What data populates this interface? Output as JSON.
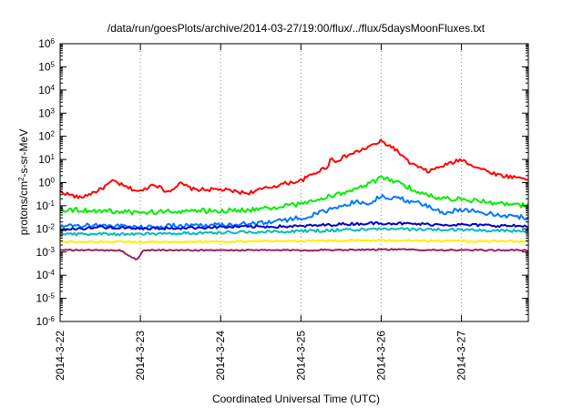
{
  "chart_data": {
    "type": "line",
    "title": "/data/run/goesPlots/archive/2014-03-27/19:00/flux/../flux/5daysMoonFluxes.txt",
    "xlabel": "Coordinated Universal Time (UTC)",
    "ylabel": {
      "base": "protons/cm",
      "sup": "2",
      "rest": "-s-sr-MeV"
    },
    "yscale": "log",
    "ylim": [
      1e-06,
      1000000.0
    ],
    "xlim": [
      "2014-03-22",
      "2014-03-27T20:00"
    ],
    "grid": "vertical dotted at each date tick",
    "legend": "none",
    "x_ticks": [
      "2014-3-22",
      "2014-3-23",
      "2014-3-24",
      "2014-3-25",
      "2014-3-26",
      "2014-3-27"
    ],
    "y_ticks": [
      {
        "base": "10",
        "exp": "-6"
      },
      {
        "base": "10",
        "exp": "-5"
      },
      {
        "base": "10",
        "exp": "-4"
      },
      {
        "base": "10",
        "exp": "-3"
      },
      {
        "base": "10",
        "exp": "-2"
      },
      {
        "base": "10",
        "exp": "-1"
      },
      {
        "base": "10",
        "exp": "0"
      },
      {
        "base": "10",
        "exp": "1"
      },
      {
        "base": "10",
        "exp": "2"
      },
      {
        "base": "10",
        "exp": "3"
      },
      {
        "base": "10",
        "exp": "4"
      },
      {
        "base": "10",
        "exp": "5"
      },
      {
        "base": "10",
        "exp": "6"
      }
    ],
    "series": [
      {
        "color": "#ff0000",
        "noise": 0.08,
        "points": [
          [
            "2014-03-22T00:00",
            0.4
          ],
          [
            "2014-03-22T06:00",
            0.22
          ],
          [
            "2014-03-22T12:00",
            0.5
          ],
          [
            "2014-03-22T16:00",
            1.2
          ],
          [
            "2014-03-22T19:00",
            0.7
          ],
          [
            "2014-03-23T00:00",
            0.4
          ],
          [
            "2014-03-23T04:00",
            0.9
          ],
          [
            "2014-03-23T08:00",
            0.4
          ],
          [
            "2014-03-23T12:00",
            0.9
          ],
          [
            "2014-03-23T16:00",
            0.5
          ],
          [
            "2014-03-24T00:00",
            0.5
          ],
          [
            "2014-03-24T08:00",
            0.35
          ],
          [
            "2014-03-24T12:00",
            0.5
          ],
          [
            "2014-03-24T19:00",
            0.9
          ],
          [
            "2014-03-25T00:00",
            1.2
          ],
          [
            "2014-03-25T04:00",
            2.5
          ],
          [
            "2014-03-25T08:00",
            5
          ],
          [
            "2014-03-25T09:00",
            12
          ],
          [
            "2014-03-25T10:00",
            8
          ],
          [
            "2014-03-25T14:00",
            15
          ],
          [
            "2014-03-25T18:00",
            25
          ],
          [
            "2014-03-26T00:00",
            60
          ],
          [
            "2014-03-26T04:00",
            30
          ],
          [
            "2014-03-26T08:00",
            8
          ],
          [
            "2014-03-26T12:00",
            4
          ],
          [
            "2014-03-26T14:00",
            3
          ],
          [
            "2014-03-26T18:00",
            5
          ],
          [
            "2014-03-27T00:00",
            10
          ],
          [
            "2014-03-27T04:00",
            5
          ],
          [
            "2014-03-27T08:00",
            3
          ],
          [
            "2014-03-27T12:00",
            2
          ],
          [
            "2014-03-27T20:00",
            1.5
          ]
        ]
      },
      {
        "color": "#00ee00",
        "noise": 0.1,
        "points": [
          [
            "2014-03-22T00:00",
            0.07
          ],
          [
            "2014-03-22T12:00",
            0.06
          ],
          [
            "2014-03-23T00:00",
            0.05
          ],
          [
            "2014-03-23T12:00",
            0.06
          ],
          [
            "2014-03-24T00:00",
            0.06
          ],
          [
            "2014-03-24T12:00",
            0.07
          ],
          [
            "2014-03-25T00:00",
            0.12
          ],
          [
            "2014-03-25T06:00",
            0.2
          ],
          [
            "2014-03-25T12:00",
            0.35
          ],
          [
            "2014-03-25T18:00",
            0.6
          ],
          [
            "2014-03-26T00:00",
            1.6
          ],
          [
            "2014-03-26T06:00",
            0.9
          ],
          [
            "2014-03-26T12:00",
            0.35
          ],
          [
            "2014-03-26T18:00",
            0.2
          ],
          [
            "2014-03-27T00:00",
            0.2
          ],
          [
            "2014-03-27T12:00",
            0.12
          ],
          [
            "2014-03-27T20:00",
            0.1
          ]
        ]
      },
      {
        "color": "#0077ff",
        "noise": 0.1,
        "points": [
          [
            "2014-03-22T00:00",
            0.012
          ],
          [
            "2014-03-22T12:00",
            0.015
          ],
          [
            "2014-03-23T00:00",
            0.012
          ],
          [
            "2014-03-23T12:00",
            0.014
          ],
          [
            "2014-03-24T00:00",
            0.015
          ],
          [
            "2014-03-24T12:00",
            0.018
          ],
          [
            "2014-03-25T00:00",
            0.03
          ],
          [
            "2014-03-25T08:00",
            0.06
          ],
          [
            "2014-03-25T16:00",
            0.15
          ],
          [
            "2014-03-25T20:00",
            0.12
          ],
          [
            "2014-03-26T00:00",
            0.25
          ],
          [
            "2014-03-26T06:00",
            0.2
          ],
          [
            "2014-03-26T12:00",
            0.12
          ],
          [
            "2014-03-26T18:00",
            0.05
          ],
          [
            "2014-03-27T00:00",
            0.07
          ],
          [
            "2014-03-27T12:00",
            0.04
          ],
          [
            "2014-03-27T20:00",
            0.03
          ]
        ]
      },
      {
        "color": "#0000cc",
        "noise": 0.06,
        "points": [
          [
            "2014-03-22T00:00",
            0.009
          ],
          [
            "2014-03-22T12:00",
            0.012
          ],
          [
            "2014-03-23T00:00",
            0.01
          ],
          [
            "2014-03-24T00:00",
            0.012
          ],
          [
            "2014-03-25T00:00",
            0.013
          ],
          [
            "2014-03-25T12:00",
            0.016
          ],
          [
            "2014-03-26T00:00",
            0.018
          ],
          [
            "2014-03-26T12:00",
            0.016
          ],
          [
            "2014-03-27T00:00",
            0.015
          ],
          [
            "2014-03-27T20:00",
            0.013
          ]
        ]
      },
      {
        "color": "#00bbbb",
        "noise": 0.06,
        "points": [
          [
            "2014-03-22T00:00",
            0.006
          ],
          [
            "2014-03-23T00:00",
            0.006
          ],
          [
            "2014-03-24T00:00",
            0.007
          ],
          [
            "2014-03-25T00:00",
            0.008
          ],
          [
            "2014-03-26T00:00",
            0.01
          ],
          [
            "2014-03-27T00:00",
            0.009
          ],
          [
            "2014-03-27T20:00",
            0.008
          ]
        ]
      },
      {
        "color": "#ffee00",
        "noise": 0.04,
        "points": [
          [
            "2014-03-22T00:00",
            0.0028
          ],
          [
            "2014-03-23T00:00",
            0.0027
          ],
          [
            "2014-03-24T00:00",
            0.0028
          ],
          [
            "2014-03-25T00:00",
            0.003
          ],
          [
            "2014-03-26T00:00",
            0.0032
          ],
          [
            "2014-03-27T00:00",
            0.003
          ],
          [
            "2014-03-27T20:00",
            0.0029
          ]
        ]
      },
      {
        "color": "#992266",
        "noise": 0.03,
        "points": [
          [
            "2014-03-22T00:00",
            0.0012
          ],
          [
            "2014-03-22T18:00",
            0.0012
          ],
          [
            "2014-03-22T23:00",
            0.00045
          ],
          [
            "2014-03-23T01:00",
            0.0012
          ],
          [
            "2014-03-24T00:00",
            0.0012
          ],
          [
            "2014-03-25T00:00",
            0.0012
          ],
          [
            "2014-03-26T00:00",
            0.0013
          ],
          [
            "2014-03-27T00:00",
            0.0012
          ],
          [
            "2014-03-27T20:00",
            0.0012
          ]
        ]
      }
    ]
  }
}
